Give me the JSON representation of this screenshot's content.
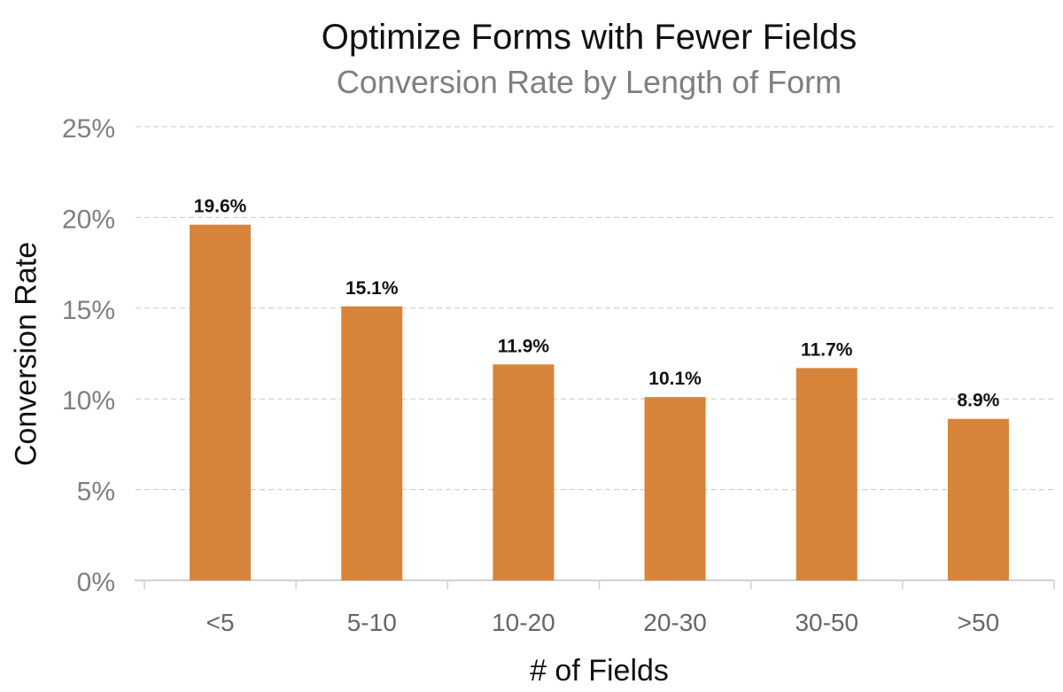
{
  "chart_data": {
    "type": "bar",
    "title": "Optimize Forms with Fewer Fields",
    "subtitle": "Conversion Rate by Length of Form",
    "xlabel": "# of Fields",
    "ylabel": "Conversion Rate",
    "categories": [
      "<5",
      "5-10",
      "10-20",
      "20-30",
      "30-50",
      ">50"
    ],
    "values": [
      19.6,
      15.1,
      11.9,
      10.1,
      11.7,
      8.9
    ],
    "data_labels": [
      "19.6%",
      "15.1%",
      "11.9%",
      "10.1%",
      "11.7%",
      "8.9%"
    ],
    "ylim": [
      0,
      25
    ],
    "yticks": [
      0,
      5,
      10,
      15,
      20,
      25
    ],
    "ytick_labels": [
      "0%",
      "5%",
      "10%",
      "15%",
      "20%",
      "25%"
    ],
    "grid": true,
    "bar_color": "#D6843A"
  }
}
